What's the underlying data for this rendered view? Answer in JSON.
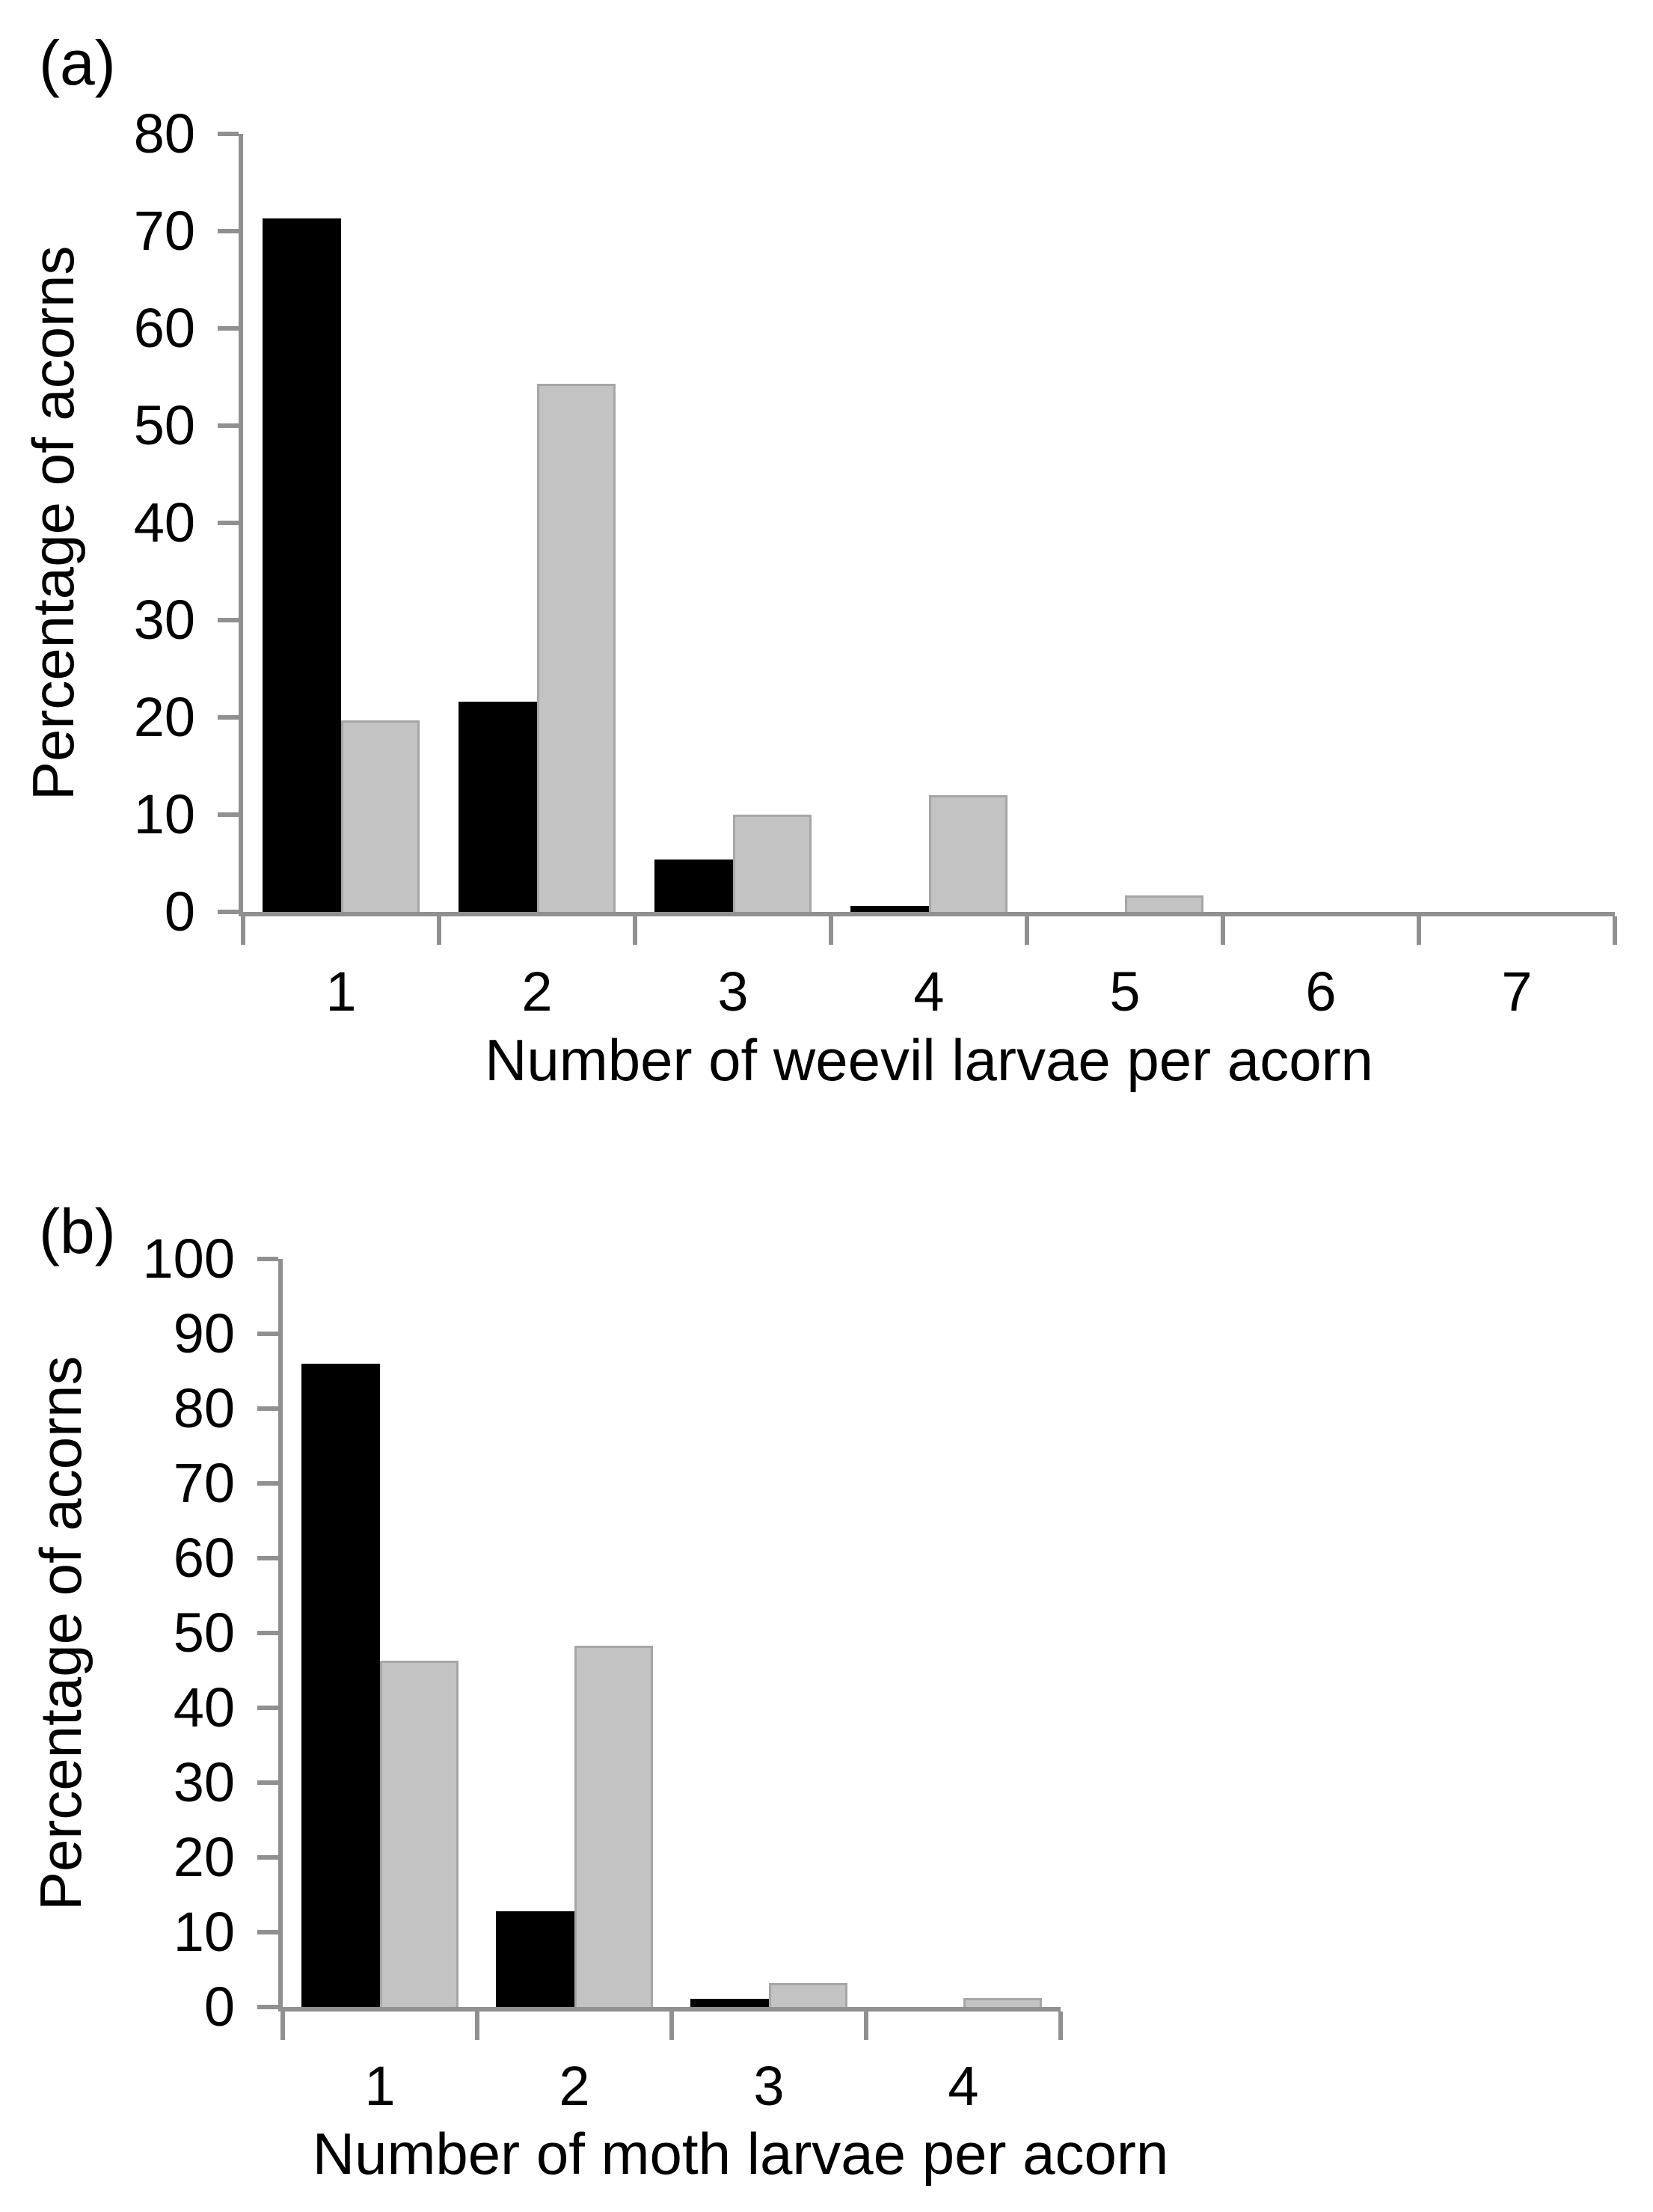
{
  "figure": {
    "background": "#ffffff"
  },
  "style": {
    "axis_color": "#909090",
    "text_color": "#000000",
    "bar_black": "#000000",
    "bar_gray": "#c3c3c3",
    "bar_gray_border": "#a6a6a6"
  },
  "chart_data": [
    {
      "type": "bar",
      "panel_label": "(a)",
      "title": "",
      "xlabel": "Number of weevil larvae per acorn",
      "ylabel": "Percentage of acorns",
      "categories": [
        "1",
        "2",
        "3",
        "4",
        "5",
        "6",
        "7"
      ],
      "series": [
        {
          "name": "series-black",
          "color": "#000000",
          "values": [
            71.3,
            21.6,
            5.4,
            0.6,
            0,
            0,
            0
          ]
        },
        {
          "name": "series-gray",
          "color": "#c3c3c3",
          "values": [
            19.7,
            54.3,
            10.0,
            12.0,
            1.7,
            0,
            0
          ]
        }
      ],
      "ylim": [
        0,
        80
      ],
      "ytick_step": 10,
      "yticks": [
        "0",
        "10",
        "20",
        "30",
        "40",
        "50",
        "60",
        "70",
        "80"
      ],
      "grid": false,
      "legend": "none"
    },
    {
      "type": "bar",
      "panel_label": "(b)",
      "title": "",
      "xlabel": "Number of moth larvae per acorn",
      "ylabel": "Percentage of acorns",
      "categories": [
        "1",
        "2",
        "3",
        "4"
      ],
      "series": [
        {
          "name": "series-black",
          "color": "#000000",
          "values": [
            86.0,
            12.8,
            1.1,
            0
          ]
        },
        {
          "name": "series-gray",
          "color": "#c3c3c3",
          "values": [
            46.3,
            48.3,
            3.2,
            1.2
          ]
        }
      ],
      "ylim": [
        0,
        100
      ],
      "ytick_step": 10,
      "yticks": [
        "0",
        "10",
        "20",
        "30",
        "40",
        "50",
        "60",
        "70",
        "80",
        "90",
        "100"
      ],
      "grid": false,
      "legend": "none"
    }
  ]
}
